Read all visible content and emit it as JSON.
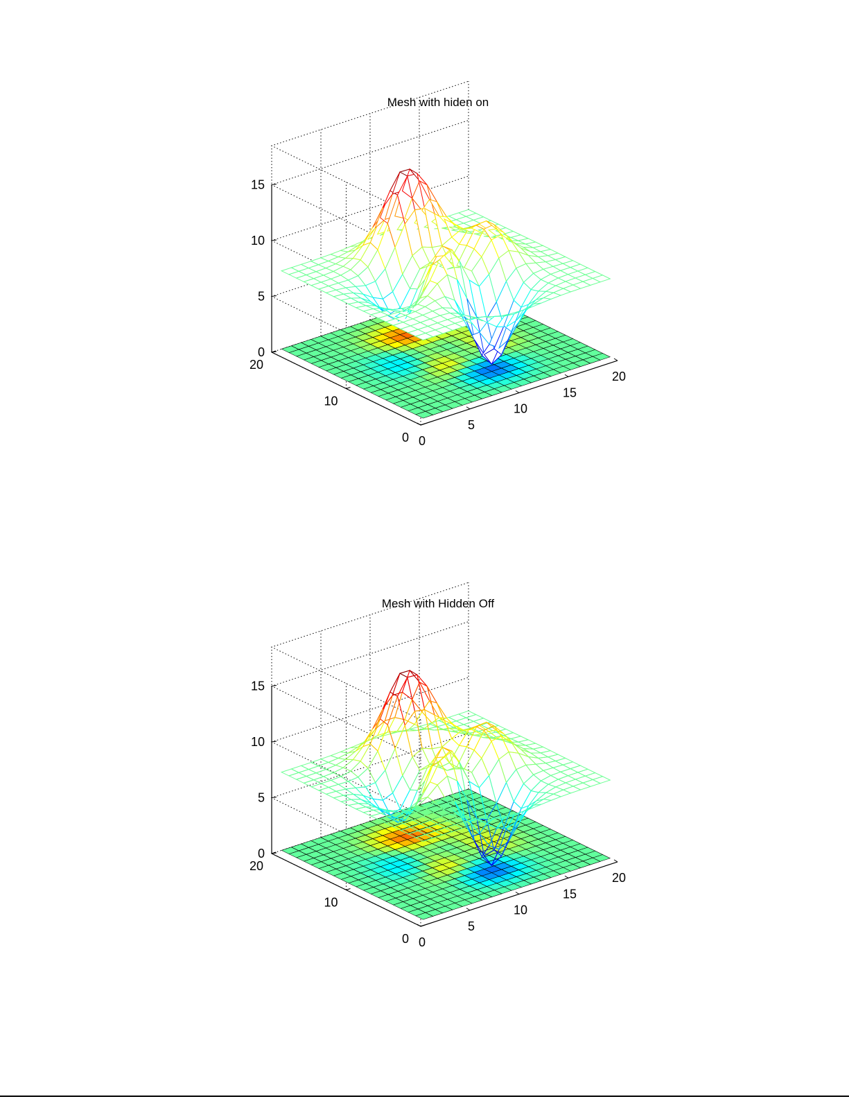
{
  "chart_data": [
    {
      "type": "mesh3d",
      "title": "Mesh with hiden on",
      "hidden": "on",
      "function": "peaks(20) + 7 over a contour map at z = 0",
      "grid_size": 20,
      "x_range": [
        0,
        20
      ],
      "y_range": [
        0,
        20
      ],
      "z_range": [
        0,
        15
      ],
      "x_ticks": [
        "0",
        "5",
        "10",
        "15",
        "20"
      ],
      "y_ticks": [
        "0",
        "10",
        "20"
      ],
      "z_ticks": [
        "0",
        "5",
        "10",
        "15"
      ],
      "grid": true,
      "colormap": "jet",
      "offset": 7,
      "peak_z": 15.1,
      "min_z": 0.4
    },
    {
      "type": "mesh3d",
      "title": "Mesh with Hidden Off",
      "hidden": "off",
      "function": "peaks(20) + 7 over a contour map at z = 0",
      "grid_size": 20,
      "x_range": [
        0,
        20
      ],
      "y_range": [
        0,
        20
      ],
      "z_range": [
        0,
        15
      ],
      "x_ticks": [
        "0",
        "5",
        "10",
        "15",
        "20"
      ],
      "y_ticks": [
        "0",
        "10",
        "20"
      ],
      "z_ticks": [
        "0",
        "5",
        "10",
        "15"
      ],
      "grid": true,
      "colormap": "jet",
      "offset": 7,
      "peak_z": 15.1,
      "min_z": 0.4
    }
  ]
}
